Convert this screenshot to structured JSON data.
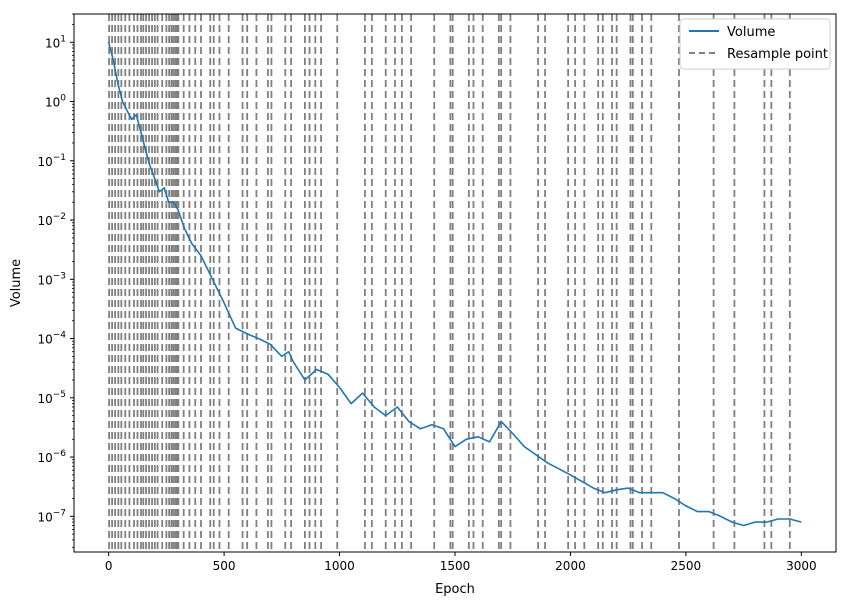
{
  "chart_data": {
    "type": "line",
    "title": "",
    "xlabel": "Epoch",
    "ylabel": "Volume",
    "xlim": [
      -150,
      3150
    ],
    "ylim": [
      2.5e-08,
      30
    ],
    "yscale": "log",
    "grid": false,
    "legend_position": "top-right",
    "x_ticks": [
      0,
      500,
      1000,
      1500,
      2000,
      2500,
      3000
    ],
    "x_tick_labels": [
      "0",
      "500",
      "1000",
      "1500",
      "2000",
      "2500",
      "3000"
    ],
    "y_ticks": [
      1e-07,
      1e-06,
      1e-05,
      0.0001,
      0.001,
      0.01,
      0.1,
      1,
      10
    ],
    "y_tick_labels": [
      {
        "base": "10",
        "exp": "−7"
      },
      {
        "base": "10",
        "exp": "−6"
      },
      {
        "base": "10",
        "exp": "−5"
      },
      {
        "base": "10",
        "exp": "−4"
      },
      {
        "base": "10",
        "exp": "−3"
      },
      {
        "base": "10",
        "exp": "−2"
      },
      {
        "base": "10",
        "exp": "−1"
      },
      {
        "base": "10",
        "exp": "0"
      },
      {
        "base": "10",
        "exp": "1"
      }
    ],
    "colors": {
      "volume": "#1f77b4",
      "resample": "#808080"
    },
    "series": [
      {
        "name": "Volume",
        "x": [
          0,
          20,
          40,
          60,
          80,
          100,
          120,
          140,
          160,
          180,
          200,
          220,
          240,
          260,
          280,
          300,
          330,
          360,
          400,
          450,
          500,
          550,
          600,
          650,
          700,
          750,
          780,
          800,
          850,
          900,
          950,
          1000,
          1050,
          1100,
          1150,
          1200,
          1250,
          1300,
          1350,
          1400,
          1450,
          1500,
          1550,
          1600,
          1650,
          1700,
          1750,
          1800,
          1900,
          2000,
          2100,
          2150,
          2200,
          2250,
          2300,
          2350,
          2400,
          2450,
          2500,
          2550,
          2600,
          2650,
          2700,
          2750,
          2800,
          2850,
          2900,
          2950,
          3000
        ],
        "y": [
          10,
          5,
          2,
          1,
          0.7,
          0.5,
          0.6,
          0.3,
          0.15,
          0.08,
          0.05,
          0.03,
          0.035,
          0.02,
          0.02,
          0.015,
          0.007,
          0.004,
          0.0025,
          0.001,
          0.0004,
          0.00015,
          0.00012,
          0.0001,
          8e-05,
          5e-05,
          6e-05,
          4e-05,
          2e-05,
          3e-05,
          2.5e-05,
          1.5e-05,
          8e-06,
          1.2e-05,
          7e-06,
          5e-06,
          7e-06,
          4e-06,
          3e-06,
          3.5e-06,
          3e-06,
          1.5e-06,
          2e-06,
          2.2e-06,
          1.8e-06,
          4e-06,
          2.5e-06,
          1.5e-06,
          8e-07,
          5e-07,
          3e-07,
          2.5e-07,
          2.8e-07,
          3e-07,
          2.5e-07,
          2.5e-07,
          2.5e-07,
          2e-07,
          1.5e-07,
          1.2e-07,
          1.2e-07,
          1e-07,
          8e-08,
          7e-08,
          8e-08,
          8e-08,
          9e-08,
          9e-08,
          8e-08
        ]
      },
      {
        "name": "Resample point",
        "x": [
          2,
          15,
          28,
          42,
          55,
          72,
          90,
          110,
          125,
          140,
          150,
          162,
          175,
          188,
          200,
          212,
          232,
          250,
          262,
          272,
          280,
          288,
          295,
          302,
          325,
          350,
          375,
          400,
          440,
          455,
          480,
          520,
          580,
          600,
          640,
          690,
          705,
          765,
          790,
          850,
          870,
          895,
          920,
          990,
          1110,
          1140,
          1200,
          1240,
          1270,
          1310,
          1410,
          1480,
          1490,
          1560,
          1580,
          1620,
          1690,
          1700,
          1740,
          1860,
          1890,
          1990,
          2020,
          2060,
          2120,
          2140,
          2180,
          2200,
          2260,
          2270,
          2310,
          2350,
          2470,
          2620,
          2710,
          2840,
          2870,
          2950
        ]
      }
    ]
  },
  "legend": {
    "items": [
      {
        "label": "Volume",
        "color": "#1f77b4",
        "style": "solid"
      },
      {
        "label": "Resample point",
        "color": "#808080",
        "style": "dashed"
      }
    ]
  }
}
